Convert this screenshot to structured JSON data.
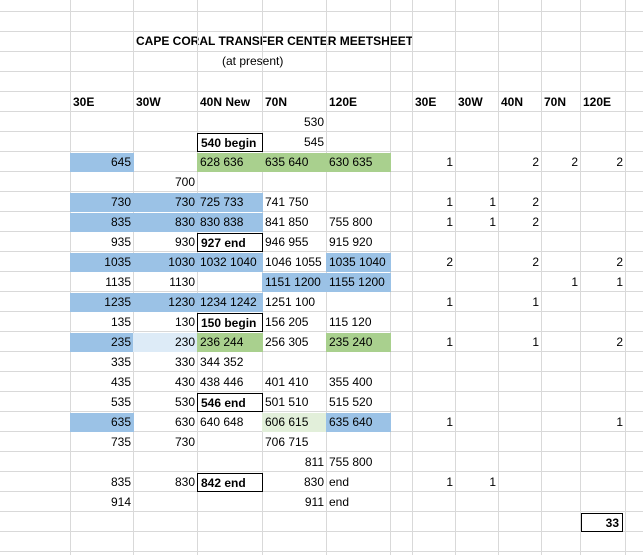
{
  "title": "CAPE CORAL TRANSFER CENTER MEETSHEET",
  "subtitle": "(at present)",
  "headers": [
    "30E",
    "30W",
    "40N New",
    "70N",
    "120E",
    "30E",
    "30W",
    "40N",
    "70N",
    "120E"
  ],
  "rows": [
    [
      null,
      null,
      null,
      530,
      null,
      null,
      null,
      null,
      null,
      null
    ],
    [
      null,
      null,
      "540 begin",
      545,
      null,
      null,
      null,
      null,
      null,
      null
    ],
    [
      645,
      null,
      "628 636",
      "635 640",
      "630 635",
      1,
      null,
      2,
      2,
      2
    ],
    [
      null,
      700,
      null,
      null,
      null,
      null,
      null,
      null,
      null,
      null
    ],
    [
      730,
      730,
      "725 733",
      "741 750",
      null,
      1,
      1,
      2,
      null,
      null
    ],
    [
      835,
      830,
      "830 838",
      "841 850",
      "755 800",
      1,
      1,
      2,
      null,
      null
    ],
    [
      935,
      930,
      "927 end",
      "946 955",
      "915 920",
      null,
      null,
      null,
      null,
      null
    ],
    [
      1035,
      1030,
      "1032 1040",
      "1046 1055",
      "1035 1040",
      2,
      null,
      2,
      null,
      2
    ],
    [
      1135,
      1130,
      null,
      "1151 1200",
      "1155 1200",
      null,
      null,
      null,
      1,
      1
    ],
    [
      1235,
      1230,
      "1234 1242",
      "1251 100",
      null,
      1,
      null,
      1,
      null,
      null
    ],
    [
      135,
      130,
      "150 begin",
      "156 205",
      "115 120",
      null,
      null,
      null,
      null,
      null
    ],
    [
      235,
      230,
      "236 244",
      "256 305",
      "235 240",
      1,
      null,
      1,
      null,
      2
    ],
    [
      335,
      330,
      "344 352",
      null,
      null,
      null,
      null,
      null,
      null,
      null
    ],
    [
      435,
      430,
      "438 446",
      "401 410",
      "355 400",
      null,
      null,
      null,
      null,
      null
    ],
    [
      535,
      530,
      "546 end",
      "501 510",
      "515 520",
      null,
      null,
      null,
      null,
      null
    ],
    [
      635,
      630,
      "640 648",
      "606 615",
      "635 640",
      1,
      null,
      null,
      null,
      1
    ],
    [
      735,
      730,
      null,
      "706 715",
      null,
      null,
      null,
      null,
      null,
      null
    ],
    [
      null,
      null,
      null,
      811,
      "755 800",
      null,
      null,
      null,
      null,
      null
    ],
    [
      835,
      830,
      "842 end",
      830,
      "end",
      1,
      1,
      null,
      null,
      null
    ],
    [
      914,
      null,
      null,
      911,
      "end",
      null,
      null,
      null,
      null,
      null
    ]
  ],
  "total": 33
}
